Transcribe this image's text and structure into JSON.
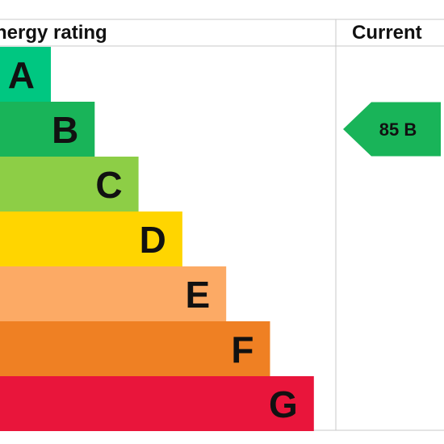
{
  "header": {
    "energy_label": "nergy rating",
    "current_label": "Current"
  },
  "chart_data": {
    "type": "bar",
    "title": "",
    "categories": [
      "A",
      "B",
      "C",
      "D",
      "E",
      "F",
      "G"
    ],
    "colors": [
      "#00c781",
      "#19b459",
      "#8dce46",
      "#ffd500",
      "#fcaa65",
      "#ef8023",
      "#e9153b"
    ],
    "current": {
      "value": 85,
      "band": "B",
      "label": "85  B",
      "color": "#19b459"
    }
  }
}
